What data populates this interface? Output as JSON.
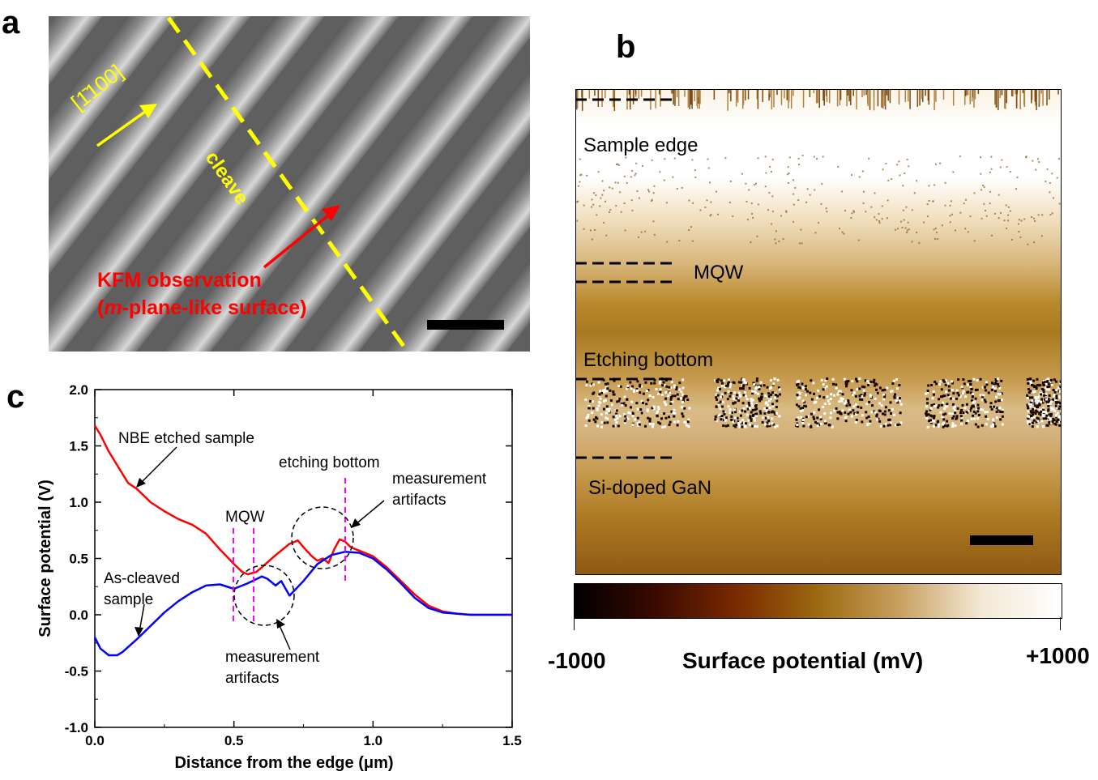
{
  "panel_a": {
    "letter": "a",
    "direction_label": "[1̄100]",
    "cleave_label": "cleave",
    "kfm_line1": "KFM observation",
    "kfm_line2_prefix": "(",
    "kfm_line2_m": "m",
    "kfm_line2_suffix": "-plane-like surface)",
    "colors": {
      "highlight": "#ffff00",
      "annotation": "#ff0000"
    }
  },
  "panel_b": {
    "letter": "b",
    "labels": {
      "sample_edge": "Sample edge",
      "mqw": "MQW",
      "etching_bottom": "Etching bottom",
      "si_doped": "Si-doped GaN"
    },
    "colorbar": {
      "min_label": "-1000",
      "max_label": "+1000",
      "title": "Surface potential (mV)",
      "stops": [
        "#000000",
        "#3a0a00",
        "#7a2a00",
        "#9c6a10",
        "#c7a060",
        "#f3e8d4",
        "#ffffff"
      ]
    }
  },
  "panel_c": {
    "letter": "c",
    "annotations": {
      "nbe": "NBE etched sample",
      "etching_bottom": "etching bottom",
      "meas_top_1": "measurement",
      "meas_top_2": "artifacts",
      "mqw": "MQW",
      "as_cleaved_1": "As-cleaved",
      "as_cleaved_2": "sample",
      "meas_bot_1": "measurement",
      "meas_bot_2": "artifacts"
    }
  },
  "chart_data": {
    "type": "line",
    "xlabel": "Distance from the edge (μm)",
    "ylabel": "Surface potential (V)",
    "xlim": [
      0.0,
      1.5
    ],
    "ylim": [
      -1.0,
      2.0
    ],
    "xticks": [
      "0.0",
      "0.5",
      "1.0",
      "1.5"
    ],
    "yticks": [
      "-1.0",
      "-0.5",
      "0.0",
      "0.5",
      "1.0",
      "1.5",
      "2.0"
    ],
    "grid": false,
    "series": [
      {
        "color": "#ff0000",
        "x": [
          0.0,
          0.02,
          0.05,
          0.08,
          0.1,
          0.12,
          0.15,
          0.18,
          0.2,
          0.25,
          0.3,
          0.35,
          0.4,
          0.45,
          0.5,
          0.53,
          0.55,
          0.58,
          0.6,
          0.65,
          0.7,
          0.73,
          0.75,
          0.78,
          0.8,
          0.82,
          0.84,
          0.86,
          0.88,
          0.9,
          0.92,
          0.95,
          1.0,
          1.05,
          1.1,
          1.15,
          1.2,
          1.25,
          1.3,
          1.35,
          1.4,
          1.5
        ],
        "y": [
          1.68,
          1.6,
          1.45,
          1.33,
          1.25,
          1.17,
          1.12,
          1.05,
          1.0,
          0.92,
          0.85,
          0.8,
          0.72,
          0.58,
          0.45,
          0.38,
          0.36,
          0.38,
          0.42,
          0.53,
          0.63,
          0.66,
          0.6,
          0.52,
          0.48,
          0.5,
          0.46,
          0.58,
          0.67,
          0.65,
          0.6,
          0.57,
          0.52,
          0.42,
          0.3,
          0.18,
          0.08,
          0.03,
          0.01,
          0.0,
          0.0,
          0.0
        ]
      },
      {
        "color": "#0000ff",
        "x": [
          0.0,
          0.02,
          0.05,
          0.08,
          0.1,
          0.15,
          0.2,
          0.25,
          0.3,
          0.35,
          0.4,
          0.45,
          0.5,
          0.55,
          0.6,
          0.62,
          0.65,
          0.67,
          0.7,
          0.75,
          0.8,
          0.85,
          0.9,
          0.95,
          1.0,
          1.05,
          1.1,
          1.15,
          1.2,
          1.25,
          1.3,
          1.35,
          1.5
        ],
        "y": [
          -0.2,
          -0.3,
          -0.36,
          -0.36,
          -0.33,
          -0.22,
          -0.1,
          0.02,
          0.12,
          0.2,
          0.26,
          0.27,
          0.23,
          0.28,
          0.34,
          0.32,
          0.26,
          0.3,
          0.17,
          0.3,
          0.45,
          0.53,
          0.56,
          0.55,
          0.5,
          0.4,
          0.28,
          0.15,
          0.06,
          0.02,
          0.01,
          0.0,
          0.0
        ]
      }
    ]
  }
}
